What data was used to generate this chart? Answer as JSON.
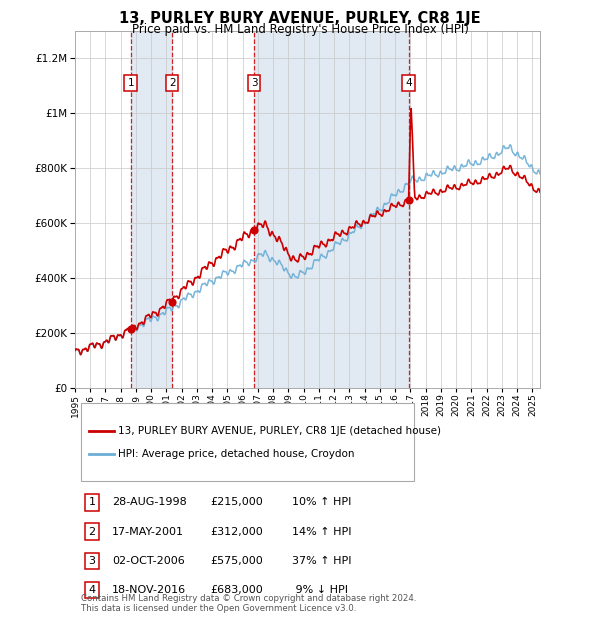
{
  "title": "13, PURLEY BURY AVENUE, PURLEY, CR8 1JE",
  "subtitle": "Price paid vs. HM Land Registry's House Price Index (HPI)",
  "footer": "Contains HM Land Registry data © Crown copyright and database right 2024.\nThis data is licensed under the Open Government Licence v3.0.",
  "legend_red": "13, PURLEY BURY AVENUE, PURLEY, CR8 1JE (detached house)",
  "legend_blue": "HPI: Average price, detached house, Croydon",
  "sales": [
    {
      "num": 1,
      "date": "28-AUG-1998",
      "price": 215000,
      "pct": "10%",
      "dir": "↑",
      "year": 1998.65
    },
    {
      "num": 2,
      "date": "17-MAY-2001",
      "price": 312000,
      "pct": "14%",
      "dir": "↑",
      "year": 2001.37
    },
    {
      "num": 3,
      "date": "02-OCT-2006",
      "price": 575000,
      "pct": "37%",
      "dir": "↑",
      "year": 2006.75
    },
    {
      "num": 4,
      "date": "18-NOV-2016",
      "price": 683000,
      "pct": "9%",
      "dir": "↓",
      "year": 2016.88
    }
  ],
  "hpi_color": "#6baed6",
  "red_color": "#cc0000",
  "dot_color": "#cc0000",
  "shade_color": "#dce6f1",
  "background": "#ffffff",
  "grid_color": "#c8c8c8",
  "ylim": [
    0,
    1300000
  ],
  "yticks": [
    0,
    200000,
    400000,
    600000,
    800000,
    1000000,
    1200000
  ],
  "xlim_start": 1995.0,
  "xlim_end": 2025.5,
  "table_data": [
    [
      "1",
      "28-AUG-1998",
      "£215,000",
      "10% ↑ HPI"
    ],
    [
      "2",
      "17-MAY-2001",
      "£312,000",
      "14% ↑ HPI"
    ],
    [
      "3",
      "02-OCT-2006",
      "£575,000",
      "37% ↑ HPI"
    ],
    [
      "4",
      "18-NOV-2016",
      "£683,000",
      " 9% ↓ HPI"
    ]
  ]
}
